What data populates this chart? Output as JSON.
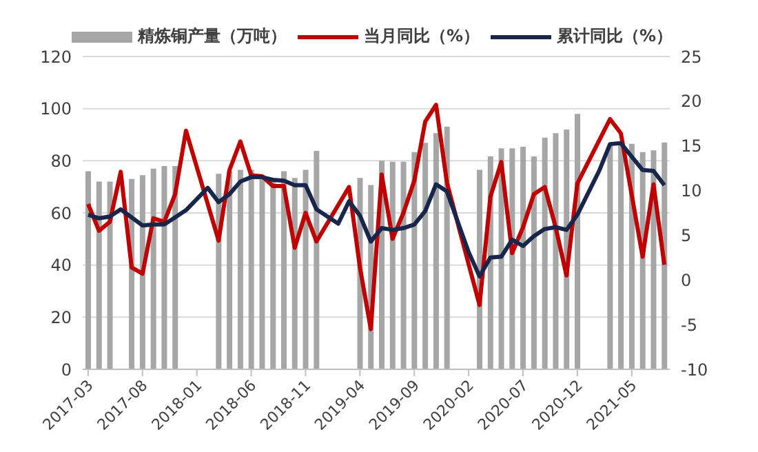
{
  "chart_data": {
    "type": "bar",
    "legend": "top",
    "grid": "y",
    "categories": [
      "2017-03",
      null,
      null,
      null,
      null,
      "2017-08",
      null,
      null,
      null,
      null,
      "2018-01",
      null,
      null,
      null,
      null,
      "2018-06",
      null,
      null,
      null,
      null,
      "2018-11",
      null,
      null,
      null,
      null,
      "2019-04",
      null,
      null,
      null,
      null,
      "2019-09",
      null,
      null,
      null,
      null,
      "2020-02",
      null,
      null,
      null,
      null,
      "2020-07",
      null,
      null,
      null,
      null,
      "2020-12",
      null,
      null,
      null,
      null,
      "2021-05",
      null,
      null,
      null
    ],
    "ylim": [
      0,
      120
    ],
    "yticks": [
      0,
      20,
      40,
      60,
      80,
      100,
      120
    ],
    "y2lim": [
      -10,
      25
    ],
    "y2ticks": [
      -10,
      -5,
      0,
      5,
      10,
      15,
      20,
      25
    ],
    "series": [
      {
        "name": "精炼铜产量（万吨）",
        "color": "#a6a6a6",
        "values": [
          76,
          72,
          72,
          null,
          73,
          74.5,
          77,
          78,
          78,
          null,
          null,
          null,
          75,
          76,
          76.5,
          76.5,
          74.5,
          73,
          76,
          73.4,
          76.5,
          83.8,
          null,
          null,
          null,
          73.4,
          70.7,
          80,
          79.6,
          79.6,
          83.3,
          86.9,
          90.6,
          93.1,
          null,
          null,
          76.5,
          81.7,
          84.8,
          84.8,
          85.4,
          81.7,
          88.9,
          90.6,
          92,
          98,
          null,
          null,
          86,
          87,
          86.5,
          83.3,
          84,
          87
        ]
      },
      {
        "name": "当月同比（%）",
        "type": "line",
        "axis": "y2",
        "color": "#c00000",
        "values": [
          8.5,
          5.5,
          6.5,
          12.1,
          1.4,
          0.7,
          6.9,
          6.5,
          9.6,
          16.7,
          null,
          null,
          4.4,
          12.3,
          15.5,
          11.7,
          11.6,
          10.5,
          10.5,
          3.6,
          7.5,
          4.3,
          null,
          null,
          10.4,
          1.4,
          -5.5,
          11.8,
          4.6,
          7.5,
          11.1,
          17.7,
          19.6,
          10.9,
          null,
          null,
          -2.8,
          9.3,
          13.2,
          3.0,
          5.9,
          9.6,
          10.4,
          5.9,
          0.5,
          10.8,
          null,
          null,
          18.0,
          16.4,
          9.5,
          2.6,
          10.7,
          1.7
        ]
      },
      {
        "name": "累计同比（%）",
        "type": "line",
        "axis": "y2",
        "color": "#17264a",
        "values": [
          7.3,
          6.9,
          7.1,
          7.9,
          7.0,
          6.1,
          6.2,
          6.2,
          7.0,
          7.8,
          null,
          10.3,
          8.7,
          9.6,
          11.0,
          11.5,
          11.5,
          11.2,
          11.1,
          10.6,
          10.6,
          7.9,
          null,
          6.3,
          8.8,
          7.2,
          4.3,
          5.8,
          5.6,
          5.8,
          6.2,
          7.7,
          10.7,
          9.9,
          null,
          3.1,
          0.4,
          2.5,
          2.6,
          4.5,
          3.8,
          4.9,
          5.7,
          5.9,
          5.6,
          7.3,
          null,
          12.2,
          15.2,
          15.3,
          13.8,
          12.3,
          12.2,
          10.6
        ]
      }
    ]
  }
}
